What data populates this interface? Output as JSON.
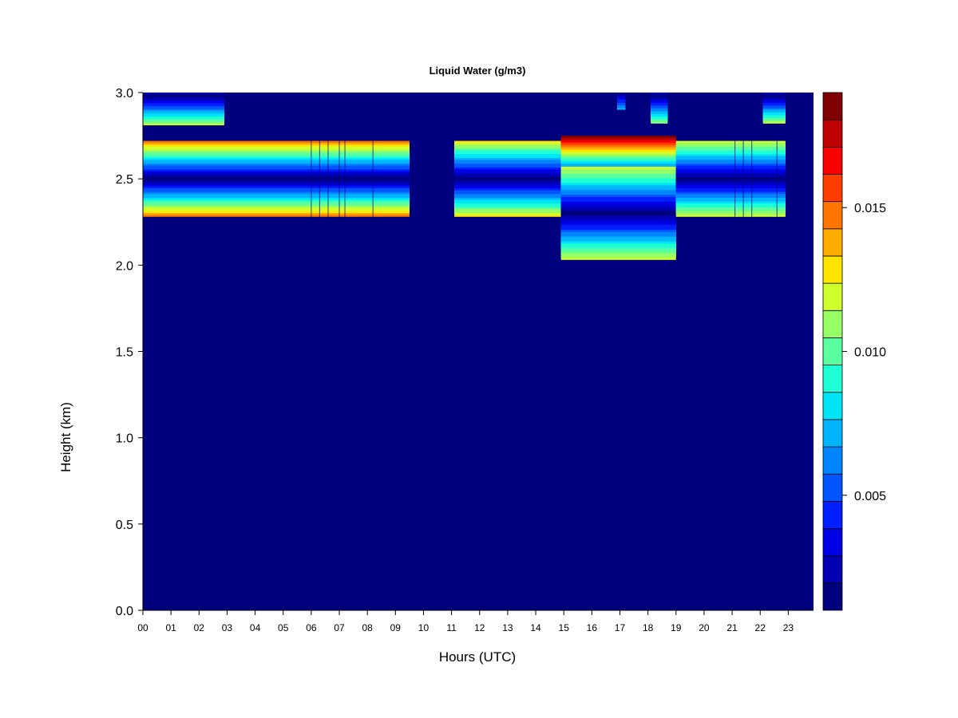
{
  "chart_data": {
    "type": "heatmap",
    "title": "Liquid Water (g/m3)",
    "xlabel": "Hours (UTC)",
    "ylabel": "Height (km)",
    "xlim": [
      0,
      23.9
    ],
    "ylim": [
      0,
      3.0
    ],
    "x_ticks": [
      "00",
      "01",
      "02",
      "03",
      "04",
      "05",
      "06",
      "07",
      "08",
      "09",
      "10",
      "11",
      "12",
      "13",
      "14",
      "15",
      "16",
      "17",
      "18",
      "19",
      "20",
      "21",
      "22",
      "23"
    ],
    "y_ticks": [
      "0.0",
      "0.5",
      "1.0",
      "1.5",
      "2.0",
      "2.5",
      "3.0"
    ],
    "background_value": 0.001,
    "colorbar": {
      "range": [
        0.001,
        0.019
      ],
      "levels": [
        0.001,
        0.002,
        0.003,
        0.004,
        0.005,
        0.006,
        0.007,
        0.008,
        0.009,
        0.01,
        0.011,
        0.012,
        0.013,
        0.014,
        0.015,
        0.016,
        0.017,
        0.018,
        0.019
      ],
      "colors": [
        "#00007f",
        "#0000b2",
        "#0000e5",
        "#0020ff",
        "#0055ff",
        "#0085ff",
        "#00b5ff",
        "#00e5f5",
        "#1fffd6",
        "#5affa0",
        "#96ff65",
        "#cfff2d",
        "#ffe500",
        "#ffae00",
        "#ff7500",
        "#ff3d00",
        "#f80000",
        "#bf0000",
        "#7f0000"
      ],
      "tick_values": [
        0.005,
        0.01,
        0.015
      ],
      "tick_labels": [
        "0.005",
        "0.010",
        "0.015"
      ]
    },
    "cloud_layers": [
      {
        "t_start": 0.0,
        "t_end": 9.5,
        "z_center": 2.5,
        "half_width": 0.22,
        "peak": 0.0145
      },
      {
        "t_start": 11.1,
        "t_end": 14.9,
        "z_center": 2.5,
        "half_width": 0.22,
        "peak": 0.0125
      },
      {
        "t_start": 14.9,
        "t_end": 19.0,
        "z_center": 2.48,
        "half_width": 0.27,
        "peak": 0.0185
      },
      {
        "t_start": 14.9,
        "t_end": 19.0,
        "z_center": 2.3,
        "half_width": 0.27,
        "peak": 0.012
      },
      {
        "t_start": 19.0,
        "t_end": 22.9,
        "z_center": 2.5,
        "half_width": 0.22,
        "peak": 0.012
      },
      {
        "t_start": 0.0,
        "t_end": 2.9,
        "z_center": 2.98,
        "half_width": 0.17,
        "peak": 0.0115
      },
      {
        "t_start": 16.9,
        "t_end": 17.2,
        "z_center": 3.0,
        "half_width": 0.1,
        "peak": 0.007
      },
      {
        "t_start": 18.1,
        "t_end": 18.7,
        "z_center": 2.98,
        "half_width": 0.16,
        "peak": 0.0105
      },
      {
        "t_start": 22.1,
        "t_end": 22.9,
        "z_center": 2.98,
        "half_width": 0.16,
        "peak": 0.0115
      }
    ],
    "vertical_streaks": [
      6.0,
      6.3,
      6.6,
      7.0,
      7.2,
      8.2,
      21.1,
      21.4,
      21.7,
      22.6,
      23.0
    ]
  }
}
